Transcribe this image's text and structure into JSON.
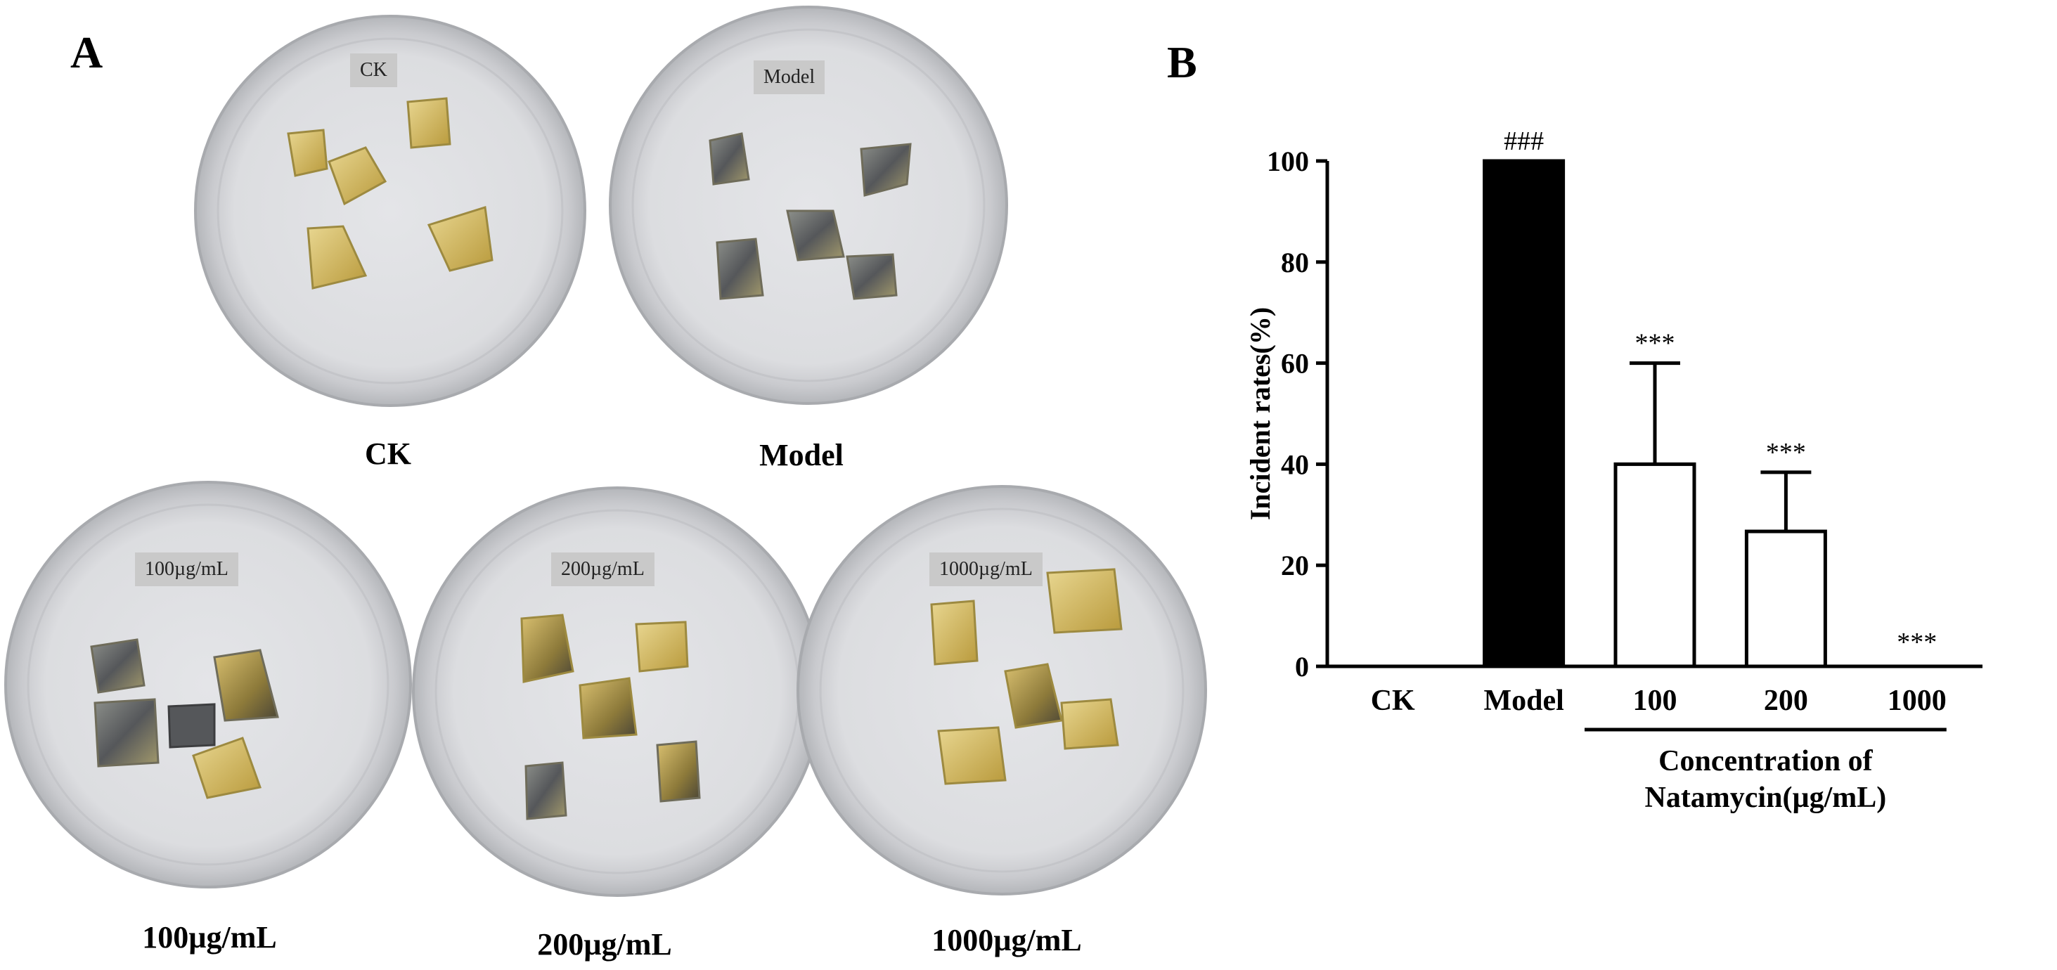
{
  "panel_a": {
    "letter": "A",
    "dishes": [
      {
        "tag": "CK",
        "caption": "CK"
      },
      {
        "tag": "Model",
        "caption": "Model"
      },
      {
        "tag": "100µg/mL",
        "caption": "100µg/mL"
      },
      {
        "tag": "200µg/mL",
        "caption": "200µg/mL"
      },
      {
        "tag": "1000µg/mL",
        "caption": "1000µg/mL"
      }
    ]
  },
  "panel_b": {
    "letter": "B"
  },
  "chart_data": {
    "type": "bar",
    "categories": [
      "CK",
      "Model",
      "100",
      "200",
      "1000"
    ],
    "values": [
      0,
      100,
      40,
      26.7,
      0
    ],
    "error_up": [
      0,
      0,
      20,
      11.7,
      0
    ],
    "annotations": [
      "",
      "###",
      "***",
      "***",
      "***"
    ],
    "fill": [
      "#ffffff",
      "#000000",
      "#ffffff",
      "#ffffff",
      "#ffffff"
    ],
    "ylabel": "Incident rates(%)",
    "xlabel": "Concentration of Natamycin(µg/mL)",
    "xlabel_lines": [
      "Concentration of",
      "Natamycin(µg/mL)"
    ],
    "bracket_categories": [
      "100",
      "200",
      "1000"
    ],
    "ylim": [
      0,
      100
    ],
    "yticks": [
      0,
      20,
      40,
      60,
      80,
      100
    ],
    "grid": false
  }
}
